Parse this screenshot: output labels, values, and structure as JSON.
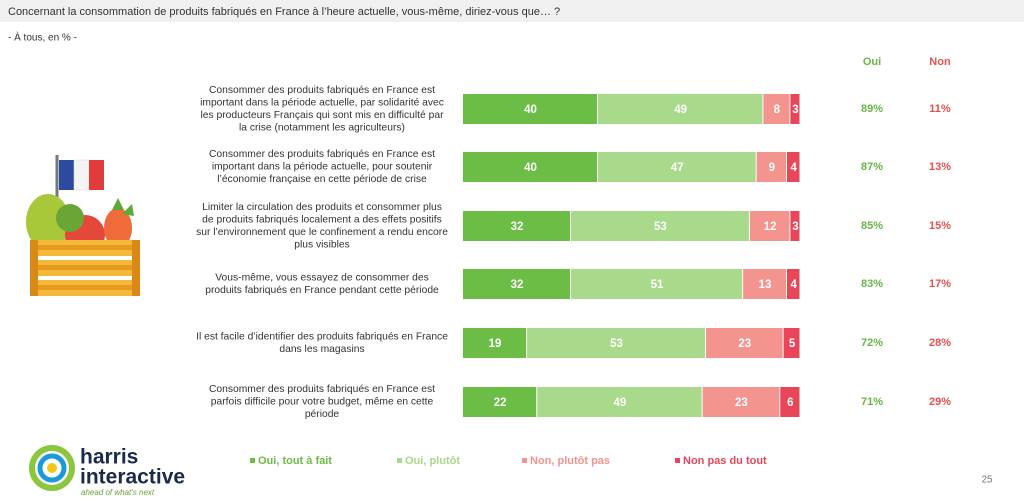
{
  "chart_data": {
    "type": "bar",
    "orientation": "horizontal",
    "stacked": true,
    "title": "Concernant la consommation de produits fabriqués en France à l’heure actuelle, vous-même, diriez-vous que… ?",
    "subtitle": "- À tous, en % -",
    "categories": [
      [
        "Consommer des produits fabriqués en France est",
        "important dans la période actuelle, par solidarité avec",
        "les producteurs Français qui sont mis en difficulté par",
        "la crise (notamment les agriculteurs)"
      ],
      [
        "Consommer des produits fabriqués en France est",
        "important dans la période actuelle, pour soutenir",
        "l’économie française en cette période de crise"
      ],
      [
        "Limiter la circulation des produits et consommer plus",
        "de produits fabriqués localement a des effets positifs",
        "sur l’environnement que le confinement a rendu encore",
        "plus visibles"
      ],
      [
        "Vous-même, vous essayez de consommer des",
        "produits fabriqués en France pendant cette période"
      ],
      [
        "Il est facile d’identifier des produits fabriqués en France",
        "dans les magasins"
      ],
      [
        "Consommer des produits fabriqués en France est",
        "parfois difficile pour votre budget, même en cette",
        "période"
      ]
    ],
    "series": [
      {
        "name": "Oui, tout à fait",
        "color": "#6cbd45",
        "values": [
          40,
          40,
          32,
          32,
          19,
          22
        ]
      },
      {
        "name": "Oui, plutôt",
        "color": "#a9d98b",
        "values": [
          49,
          47,
          53,
          51,
          53,
          49
        ]
      },
      {
        "name": "Non, plutôt pas",
        "color": "#f4948e",
        "values": [
          8,
          9,
          12,
          13,
          23,
          23
        ]
      },
      {
        "name": "Non pas du tout",
        "color": "#e8475a",
        "values": [
          3,
          4,
          3,
          4,
          5,
          6
        ]
      }
    ],
    "summary_columns": [
      {
        "name": "Oui",
        "color": "#6ab547",
        "values": [
          89,
          87,
          85,
          83,
          72,
          71
        ],
        "value_labels": [
          "89%",
          "87%",
          "85%",
          "83%",
          "72%",
          "71%"
        ]
      },
      {
        "name": "Non",
        "color": "#e6504f",
        "values": [
          11,
          13,
          15,
          17,
          28,
          29
        ],
        "value_labels": [
          "11%",
          "13%",
          "15%",
          "17%",
          "28%",
          "29%"
        ]
      }
    ]
  },
  "logo": {
    "line1": "harris",
    "line2": "interactive",
    "tagline": "ahead of what's next"
  },
  "page_number": "25"
}
